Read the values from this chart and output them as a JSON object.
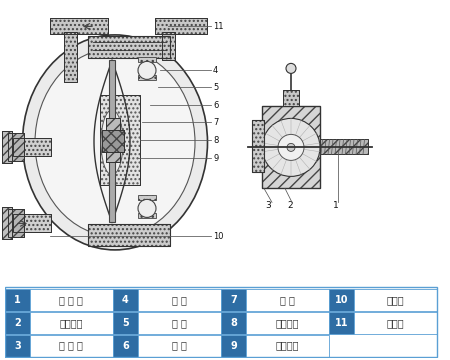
{
  "bg_color": "#ffffff",
  "table_header_color": "#2e6da4",
  "table_border_color": "#5a9fd4",
  "table_text_color": "#333333",
  "line_color": "#333333",
  "figure_width": 4.5,
  "figure_height": 3.6,
  "dpi": 100,
  "table_data": [
    [
      [
        "1",
        "进 气 口"
      ],
      [
        "4",
        "圆 球"
      ],
      [
        "7",
        "连 杆"
      ],
      [
        "10",
        "泵进口"
      ]
    ],
    [
      [
        "2",
        "配气阀体"
      ],
      [
        "5",
        "球 座"
      ],
      [
        "8",
        "连杆铜套"
      ],
      [
        "11",
        "排气口"
      ]
    ],
    [
      [
        "3",
        "配 气 阀"
      ],
      [
        "6",
        "隔 膜"
      ],
      [
        "9",
        "中间支架"
      ],
      [
        "",
        ""
      ]
    ]
  ]
}
